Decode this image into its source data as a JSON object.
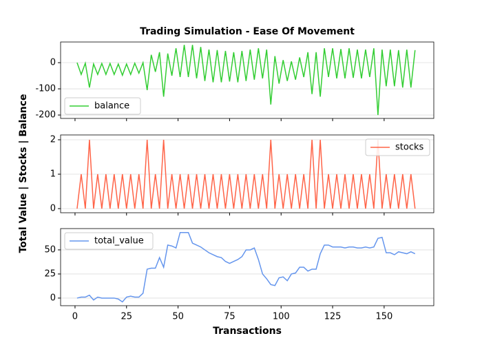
{
  "title": "Trading Simulation - Ease Of Movement",
  "xlabel": "Transactions",
  "ylabel": "Total Value | Stocks | Balance",
  "chart_data": [
    {
      "type": "line",
      "legend": "lower left",
      "grid": true,
      "xtick_labels": false,
      "xlim": [
        -7.0,
        174.1
      ],
      "xticks": [
        0,
        25,
        50,
        75,
        100,
        125,
        150
      ],
      "ylim": [
        -213,
        79
      ],
      "yticks": [
        -200,
        -100,
        0
      ],
      "x": [
        1,
        3,
        5,
        7,
        9,
        11,
        13,
        15,
        17,
        19,
        21,
        23,
        25,
        27,
        29,
        31,
        33,
        35,
        37,
        39,
        41,
        43,
        45,
        47,
        49,
        51,
        53,
        55,
        57,
        59,
        61,
        63,
        65,
        67,
        69,
        71,
        73,
        75,
        77,
        79,
        81,
        83,
        85,
        87,
        89,
        91,
        93,
        95,
        97,
        99,
        101,
        103,
        105,
        107,
        109,
        111,
        113,
        115,
        117,
        119,
        121,
        123,
        125,
        127,
        129,
        131,
        133,
        135,
        137,
        139,
        141,
        143,
        145,
        147,
        149,
        151,
        153,
        155,
        157,
        159,
        161,
        163,
        165
      ],
      "series": [
        {
          "name": "balance",
          "color": "#32cd32",
          "values": [
            0,
            -45,
            -2,
            -95,
            -5,
            -45,
            -3,
            -45,
            -3,
            -45,
            -5,
            -48,
            -5,
            -45,
            -2,
            -40,
            0,
            -105,
            30,
            -35,
            40,
            -130,
            35,
            -50,
            55,
            -55,
            68,
            -55,
            68,
            -60,
            60,
            -70,
            50,
            -75,
            48,
            -75,
            45,
            -72,
            40,
            -75,
            45,
            -70,
            50,
            -65,
            55,
            -60,
            50,
            -160,
            25,
            -80,
            10,
            -70,
            5,
            -65,
            20,
            -55,
            40,
            -120,
            40,
            -130,
            55,
            -55,
            55,
            -60,
            52,
            -60,
            55,
            -58,
            50,
            -60,
            50,
            -55,
            55,
            -200,
            50,
            -90,
            50,
            -90,
            48,
            -95,
            50,
            -95,
            48
          ]
        }
      ]
    },
    {
      "type": "line",
      "legend": "upper right",
      "grid": true,
      "xtick_labels": false,
      "xlim": [
        -7.0,
        174.1
      ],
      "xticks": [
        0,
        25,
        50,
        75,
        100,
        125,
        150
      ],
      "ylim": [
        -0.12,
        2.14
      ],
      "yticks": [
        0,
        1,
        2
      ],
      "x": [
        1,
        3,
        5,
        7,
        9,
        11,
        13,
        15,
        17,
        19,
        21,
        23,
        25,
        27,
        29,
        31,
        33,
        35,
        37,
        39,
        41,
        43,
        45,
        47,
        49,
        51,
        53,
        55,
        57,
        59,
        61,
        63,
        65,
        67,
        69,
        71,
        73,
        75,
        77,
        79,
        81,
        83,
        85,
        87,
        89,
        91,
        93,
        95,
        97,
        99,
        101,
        103,
        105,
        107,
        109,
        111,
        113,
        115,
        117,
        119,
        121,
        123,
        125,
        127,
        129,
        131,
        133,
        135,
        137,
        139,
        141,
        143,
        145,
        147,
        149,
        151,
        153,
        155,
        157,
        159,
        161,
        163,
        165
      ],
      "series": [
        {
          "name": "stocks",
          "color": "#ff6347",
          "values": [
            0,
            1,
            0,
            2,
            0,
            1,
            0,
            1,
            0,
            1,
            0,
            1,
            0,
            1,
            0,
            1,
            0,
            2,
            0,
            1,
            0,
            2,
            0,
            1,
            0,
            1,
            0,
            1,
            0,
            1,
            0,
            1,
            0,
            1,
            0,
            1,
            0,
            1,
            0,
            1,
            0,
            1,
            0,
            1,
            0,
            1,
            0,
            2,
            0,
            1,
            0,
            1,
            0,
            1,
            0,
            1,
            0,
            2,
            0,
            2,
            0,
            1,
            0,
            1,
            0,
            1,
            0,
            1,
            0,
            1,
            0,
            1,
            0,
            2,
            0,
            1,
            0,
            1,
            0,
            1,
            0,
            1,
            0
          ]
        }
      ]
    },
    {
      "type": "line",
      "legend": "upper left",
      "grid": true,
      "xtick_labels": true,
      "xlim": [
        -7.0,
        174.1
      ],
      "xticks": [
        0,
        25,
        50,
        75,
        100,
        125,
        150
      ],
      "ylim": [
        -7.9,
        72.1
      ],
      "yticks": [
        0,
        25,
        50
      ],
      "x": [
        1,
        3,
        5,
        7,
        9,
        11,
        13,
        15,
        17,
        19,
        21,
        23,
        25,
        27,
        29,
        31,
        33,
        35,
        37,
        39,
        41,
        43,
        45,
        47,
        49,
        51,
        53,
        55,
        57,
        59,
        61,
        63,
        65,
        67,
        69,
        71,
        73,
        75,
        77,
        79,
        81,
        83,
        85,
        87,
        89,
        91,
        93,
        95,
        97,
        99,
        101,
        103,
        105,
        107,
        109,
        111,
        113,
        115,
        117,
        119,
        121,
        123,
        125,
        127,
        129,
        131,
        133,
        135,
        137,
        139,
        141,
        143,
        145,
        147,
        149,
        151,
        153,
        155,
        157,
        159,
        161,
        163,
        165
      ],
      "series": [
        {
          "name": "total_value",
          "color": "#6495ed",
          "values": [
            0,
            1,
            1,
            3,
            -2,
            1,
            0,
            0,
            0,
            0,
            -1,
            -4,
            1,
            2,
            1,
            1,
            5,
            30,
            31,
            31,
            42,
            32,
            55,
            54,
            52,
            68,
            68,
            68,
            57,
            55,
            53,
            50,
            47,
            45,
            43,
            42,
            38,
            36,
            38,
            40,
            43,
            50,
            50,
            52,
            40,
            25,
            20,
            14,
            13,
            21,
            22,
            18,
            25,
            26,
            32,
            32,
            28,
            30,
            30,
            46,
            55,
            55,
            53,
            53,
            53,
            52,
            53,
            53,
            52,
            52,
            53,
            52,
            53,
            62,
            63,
            47,
            47,
            45,
            48,
            47,
            46,
            48,
            46
          ]
        }
      ]
    }
  ]
}
